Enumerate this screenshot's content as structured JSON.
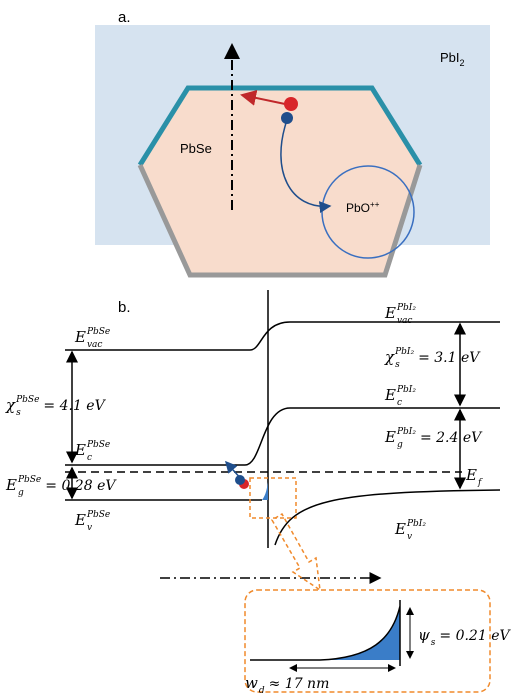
{
  "panel_a": {
    "label": "a.",
    "pbi2": {
      "base": "PbI",
      "sub": "2"
    },
    "pbse": "PbSe",
    "pbo": {
      "base": "PbO",
      "sup": "++"
    }
  },
  "panel_b": {
    "label": "b.",
    "levels": {
      "evac_pbse": {
        "symbol": "E",
        "sup": "PbSe",
        "sub": "vac"
      },
      "chi_pbse": {
        "symbol": "χ",
        "sup": "PbSe",
        "sub": "s",
        "eq": "= 4.1 eV"
      },
      "ec_pbse": {
        "symbol": "E",
        "sup": "PbSe",
        "sub": "c"
      },
      "eg_pbse": {
        "symbol": "E",
        "sup": "PbSe",
        "sub": "g",
        "eq": "= 0.28 eV"
      },
      "ev_pbse": {
        "symbol": "E",
        "sup": "PbSe",
        "sub": "v"
      },
      "evac_pbi2": {
        "symbol": "E",
        "sup": "PbI₂",
        "sub": "vac"
      },
      "chi_pbi2": {
        "symbol": "χ",
        "sup": "PbI₂",
        "sub": "s",
        "eq": "= 3.1 eV"
      },
      "ec_pbi2": {
        "symbol": "E",
        "sup": "PbI₂",
        "sub": "c"
      },
      "eg_pbi2": {
        "symbol": "E",
        "sup": "PbI₂",
        "sub": "g",
        "eq": "= 2.4 eV"
      },
      "ef": {
        "symbol": "E",
        "sub": "f"
      },
      "ev_pbi2": {
        "symbol": "E",
        "sup": "PbI₂",
        "sub": "v"
      },
      "psi": {
        "symbol": "ψ",
        "sub": "s",
        "eq": "= 0.21 eV"
      },
      "wd": {
        "symbol": "w",
        "sub": "d",
        "eq": "≈ 17 nm"
      }
    }
  }
}
